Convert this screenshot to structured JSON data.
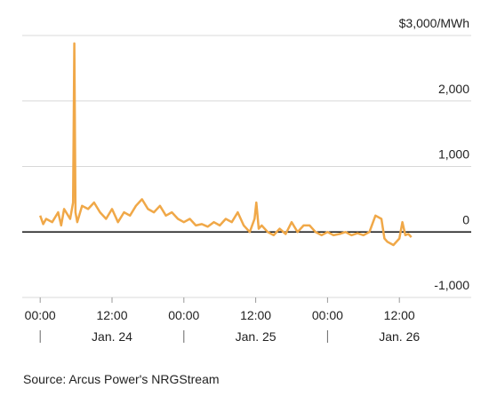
{
  "chart_data": {
    "type": "line",
    "yticks": [
      {
        "value": -1000,
        "label": "-1,000"
      },
      0,
      {
        "value": 1000,
        "label": "1,000"
      },
      {
        "value": 2000,
        "label": "2,000"
      },
      {
        "value": 3000,
        "label": "$3,000/MWh"
      }
    ],
    "ylim": [
      -1000,
      3000
    ],
    "xlim": [
      -3,
      72
    ],
    "xticks": [
      {
        "value": 0,
        "label": "00:00"
      },
      {
        "value": 12,
        "label": "12:00"
      },
      {
        "value": 24,
        "label": "00:00"
      },
      {
        "value": 36,
        "label": "12:00"
      },
      {
        "value": 48,
        "label": "00:00"
      },
      {
        "value": 60,
        "label": "12:00"
      }
    ],
    "x_groups": [
      {
        "label": "Jan. 24",
        "start": 0,
        "end": 24
      },
      {
        "label": "Jan. 25",
        "start": 24,
        "end": 48
      },
      {
        "label": "Jan. 26",
        "start": 48,
        "end": 72
      }
    ],
    "grid": true,
    "zero_line": true,
    "series": [
      {
        "color": "#f0a848",
        "x": [
          0,
          0.5,
          1,
          2,
          3,
          3.5,
          4,
          5,
          5.5,
          5.7,
          5.9,
          6.2,
          7,
          8,
          9,
          10,
          11,
          12,
          13,
          14,
          15,
          16,
          17,
          18,
          19,
          20,
          21,
          22,
          23,
          24,
          25,
          26,
          27,
          28,
          29,
          30,
          31,
          32,
          33,
          34,
          35,
          35.8,
          36.1,
          36.5,
          37,
          38,
          39,
          40,
          41,
          42,
          43,
          44,
          45,
          46,
          47,
          48,
          49,
          50,
          51,
          52,
          53,
          54,
          55,
          56,
          57,
          57.5,
          58,
          59,
          60,
          60.5,
          61,
          61.5,
          62
        ],
        "values": [
          250,
          120,
          200,
          150,
          300,
          100,
          350,
          200,
          450,
          2880,
          300,
          150,
          400,
          350,
          450,
          300,
          200,
          350,
          150,
          300,
          250,
          400,
          500,
          350,
          300,
          400,
          250,
          300,
          200,
          150,
          200,
          100,
          120,
          80,
          150,
          100,
          200,
          150,
          300,
          100,
          0,
          200,
          450,
          50,
          100,
          0,
          -50,
          50,
          -30,
          150,
          0,
          100,
          100,
          0,
          -50,
          0,
          -50,
          -30,
          0,
          -50,
          -20,
          -50,
          0,
          250,
          200,
          -100,
          -150,
          -200,
          -100,
          150,
          -50,
          -30,
          -80
        ]
      }
    ],
    "source": "Source: Arcus Power's NRGStream"
  }
}
